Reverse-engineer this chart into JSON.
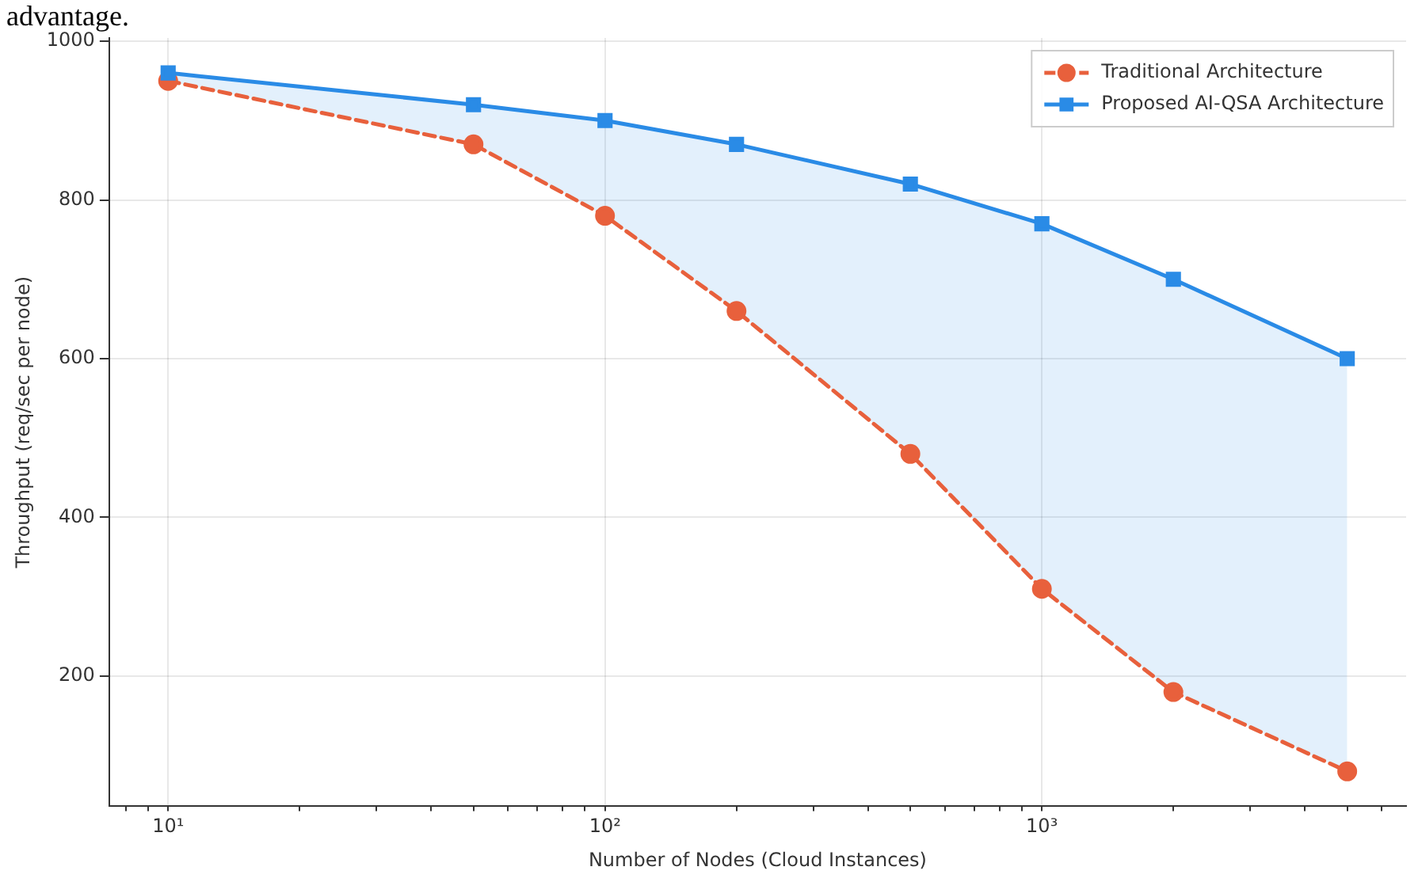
{
  "chart_data": {
    "type": "line",
    "xlabel": "Number of Nodes (Cloud Instances)",
    "ylabel": "Throughput (req/sec per node)",
    "annotations": [
      "advantage."
    ],
    "x": [
      10,
      50,
      100,
      200,
      500,
      1000,
      2000,
      5000
    ],
    "series": [
      {
        "name": "Traditional Architecture",
        "color": "#e8603c",
        "marker": "circle",
        "line_style": "dashed",
        "values": [
          950,
          870,
          780,
          660,
          480,
          310,
          180,
          80
        ]
      },
      {
        "name": "Proposed AI-QSA Architecture",
        "color": "#2a8be6",
        "marker": "square",
        "line_style": "solid",
        "values": [
          960,
          920,
          900,
          870,
          820,
          770,
          700,
          600
        ],
        "lower": [
          950,
          870,
          780,
          660,
          480,
          310,
          180,
          80
        ],
        "upper": [
          960,
          920,
          900,
          870,
          820,
          770,
          700,
          600
        ]
      }
    ],
    "log": "x",
    "xlim": [
      7.33,
      6820
    ],
    "ylim": [
      36,
      1004
    ],
    "xticks": [
      {
        "value": 8,
        "label": null
      },
      {
        "value": 9,
        "label": null
      },
      {
        "value": 10,
        "label": "10¹"
      },
      {
        "value": 20,
        "label": null
      },
      {
        "value": 30,
        "label": null
      },
      {
        "value": 40,
        "label": null
      },
      {
        "value": 50,
        "label": null
      },
      {
        "value": 60,
        "label": null
      },
      {
        "value": 70,
        "label": null
      },
      {
        "value": 80,
        "label": null
      },
      {
        "value": 90,
        "label": null
      },
      {
        "value": 100,
        "label": "10²"
      },
      {
        "value": 200,
        "label": null
      },
      {
        "value": 300,
        "label": null
      },
      {
        "value": 400,
        "label": null
      },
      {
        "value": 500,
        "label": null
      },
      {
        "value": 600,
        "label": null
      },
      {
        "value": 700,
        "label": null
      },
      {
        "value": 800,
        "label": null
      },
      {
        "value": 900,
        "label": null
      },
      {
        "value": 1000,
        "label": "10³"
      },
      {
        "value": 2000,
        "label": null
      },
      {
        "value": 3000,
        "label": null
      },
      {
        "value": 4000,
        "label": null
      },
      {
        "value": 5000,
        "label": null
      },
      {
        "value": 6000,
        "label": null
      }
    ],
    "yticks": [
      200,
      400,
      600,
      800,
      1000
    ],
    "grid": true,
    "legend": "top right"
  }
}
